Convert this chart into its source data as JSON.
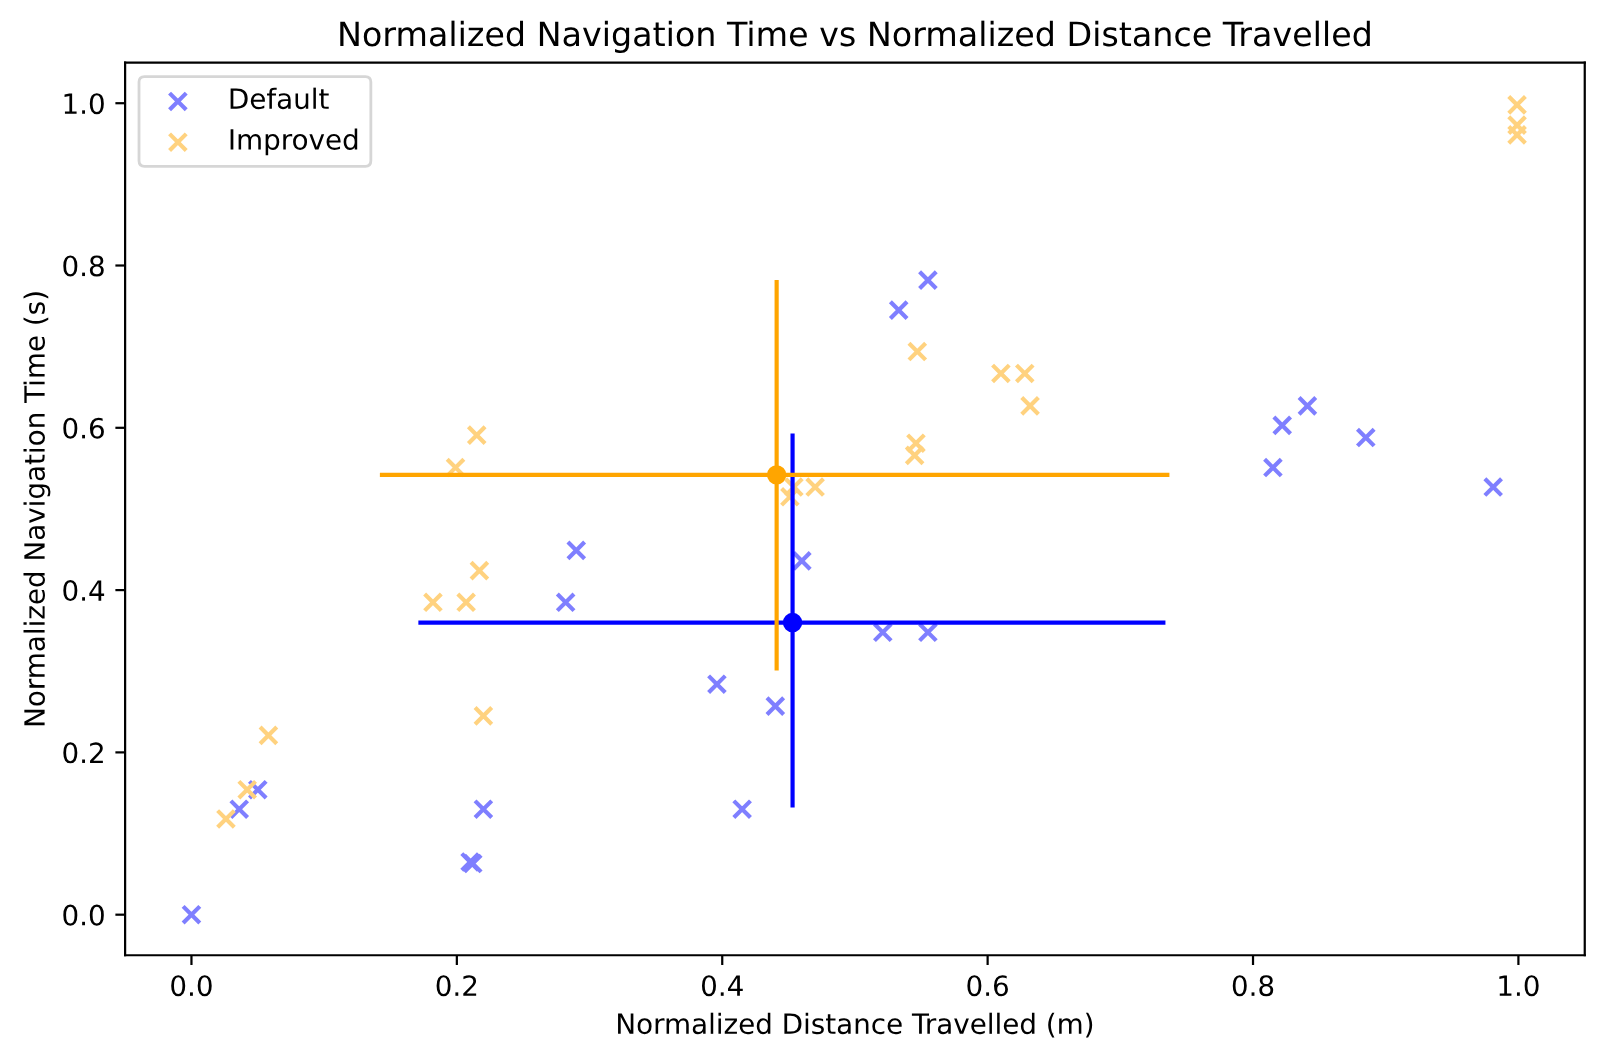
{
  "chart_data": {
    "type": "scatter",
    "title": "Normalized Navigation Time vs Normalized Distance Travelled",
    "xlabel": "Normalized Distance Travelled (m)",
    "ylabel": "Normalized Navigation Time (s)",
    "xlim": [
      -0.05,
      1.05
    ],
    "ylim": [
      -0.05,
      1.05
    ],
    "xticks": [
      {
        "value": 0,
        "label": "0.0"
      },
      0.2,
      0.4,
      0.6,
      0.8,
      {
        "value": 1,
        "label": "1.0"
      }
    ],
    "yticks": [
      {
        "value": 0,
        "label": "0.0"
      },
      0.2,
      0.4,
      0.6,
      0.8,
      {
        "value": 1,
        "label": "1.0"
      }
    ],
    "grid": false,
    "legend": "top left",
    "marker": "cross",
    "series": [
      {
        "name": "Default",
        "color": "#7f7fff",
        "x": [
          0,
          0.036,
          0.05,
          0.21,
          0.212,
          0.22,
          0.282,
          0.29,
          0.396,
          0.44,
          0.415,
          0.46,
          0.521,
          0.555,
          0.533,
          0.555,
          0.815,
          0.822,
          0.841,
          0.885,
          0.981
        ],
        "values": [
          0,
          0.13,
          0.154,
          0.065,
          0.063,
          0.13,
          0.385,
          0.449,
          0.284,
          0.257,
          0.13,
          0.436,
          0.348,
          0.348,
          0.745,
          0.782,
          0.551,
          0.603,
          0.627,
          0.588,
          0.527
        ]
      },
      {
        "name": "Improved",
        "color": "#ffd27f",
        "x": [
          0.026,
          0.042,
          0.058,
          0.182,
          0.207,
          0.217,
          0.22,
          0.199,
          0.215,
          0.451,
          0.454,
          0.47,
          0.547,
          0.61,
          0.628,
          0.632,
          0.546,
          0.545,
          0.999,
          0.999,
          0.999
        ],
        "values": [
          0.118,
          0.154,
          0.221,
          0.385,
          0.385,
          0.424,
          0.245,
          0.551,
          0.591,
          0.515,
          0.527,
          0.527,
          0.694,
          0.667,
          0.667,
          0.627,
          0.581,
          0.566,
          0.998,
          0.973,
          0.961
        ]
      },
      {
        "color": "#0000ff",
        "marker": "circle",
        "x": [
          0.453
        ],
        "values": [
          0.36
        ],
        "errors": [
          [
            0.132,
            0.593
          ]
        ],
        "xerrors": [
          [
            0.171,
            0.734
          ]
        ]
      },
      {
        "color": "#ffa500",
        "marker": "circle",
        "x": [
          0.441
        ],
        "values": [
          0.542
        ],
        "errors": [
          [
            0.301,
            0.782
          ]
        ],
        "xerrors": [
          [
            0.142,
            0.737
          ]
        ]
      }
    ]
  }
}
